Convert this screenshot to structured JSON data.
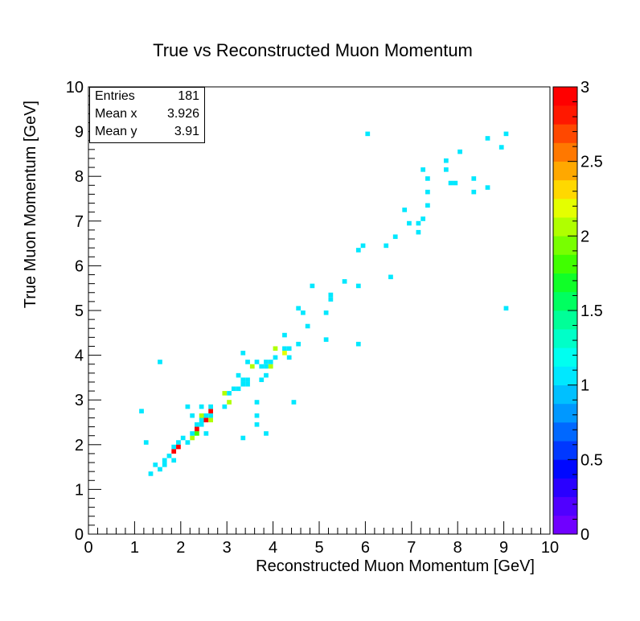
{
  "chart_data": {
    "type": "heatmap",
    "title": "True vs Reconstructed Muon Momentum",
    "xlabel": "Reconstructed Muon Momentum [GeV]",
    "ylabel": "True Muon Momentum [GeV]",
    "xlim": [
      0,
      10
    ],
    "ylim": [
      0,
      10
    ],
    "zlim": [
      0,
      3
    ],
    "bin_width": 0.1,
    "x_ticks": [
      "0",
      "1",
      "2",
      "3",
      "4",
      "5",
      "6",
      "7",
      "8",
      "9",
      "10"
    ],
    "y_ticks": [
      "0",
      "1",
      "2",
      "3",
      "4",
      "5",
      "6",
      "7",
      "8",
      "9",
      "10"
    ],
    "z_ticks": [
      "0",
      "0.5",
      "1",
      "1.5",
      "2",
      "2.5",
      "3"
    ],
    "stats": {
      "entries_label": "Entries",
      "entries": "181",
      "meanx_label": "Mean x",
      "meanx": "3.926",
      "meany_label": "Mean y",
      "meany": "3.91"
    },
    "bins": [
      [
        1.1,
        2.7,
        1
      ],
      [
        1.2,
        2.0,
        1
      ],
      [
        1.3,
        1.3,
        1
      ],
      [
        1.4,
        1.5,
        1
      ],
      [
        1.5,
        1.4,
        1
      ],
      [
        1.5,
        3.8,
        1
      ],
      [
        1.6,
        1.6,
        1
      ],
      [
        1.6,
        1.5,
        1
      ],
      [
        1.7,
        1.7,
        1
      ],
      [
        1.8,
        1.6,
        1
      ],
      [
        1.8,
        1.9,
        1
      ],
      [
        1.8,
        1.8,
        3
      ],
      [
        1.9,
        2.0,
        1
      ],
      [
        1.9,
        1.9,
        3
      ],
      [
        2.0,
        2.1,
        1
      ],
      [
        2.1,
        2.0,
        1
      ],
      [
        2.1,
        2.8,
        1
      ],
      [
        2.2,
        2.1,
        2
      ],
      [
        2.2,
        2.2,
        1
      ],
      [
        2.2,
        2.6,
        1
      ],
      [
        2.3,
        2.2,
        1.8
      ],
      [
        2.3,
        2.4,
        1
      ],
      [
        2.3,
        2.3,
        3
      ],
      [
        2.4,
        2.4,
        1
      ],
      [
        2.4,
        2.8,
        1
      ],
      [
        2.4,
        2.5,
        1
      ],
      [
        2.4,
        2.6,
        2
      ],
      [
        2.5,
        2.2,
        1
      ],
      [
        2.5,
        2.5,
        3
      ],
      [
        2.5,
        2.6,
        1
      ],
      [
        2.6,
        2.5,
        2
      ],
      [
        2.6,
        2.6,
        1
      ],
      [
        2.6,
        2.7,
        3
      ],
      [
        2.6,
        2.8,
        1
      ],
      [
        2.9,
        2.8,
        1
      ],
      [
        2.9,
        3.1,
        2
      ],
      [
        3.0,
        2.9,
        2
      ],
      [
        3.0,
        3.1,
        1
      ],
      [
        3.1,
        3.2,
        1
      ],
      [
        3.2,
        3.2,
        1
      ],
      [
        3.2,
        3.5,
        1
      ],
      [
        3.3,
        3.3,
        1
      ],
      [
        3.3,
        3.4,
        1
      ],
      [
        3.3,
        4.0,
        1
      ],
      [
        3.3,
        2.1,
        1
      ],
      [
        3.4,
        3.3,
        1
      ],
      [
        3.4,
        3.4,
        1
      ],
      [
        3.4,
        3.8,
        1
      ],
      [
        3.5,
        3.7,
        2
      ],
      [
        3.6,
        2.9,
        1
      ],
      [
        3.6,
        2.6,
        1
      ],
      [
        3.6,
        2.4,
        1
      ],
      [
        3.6,
        3.8,
        1
      ],
      [
        3.7,
        3.4,
        1
      ],
      [
        3.7,
        3.7,
        1
      ],
      [
        3.8,
        3.7,
        1
      ],
      [
        3.8,
        3.8,
        1
      ],
      [
        3.8,
        3.5,
        1
      ],
      [
        3.8,
        2.2,
        1
      ],
      [
        3.9,
        3.7,
        2
      ],
      [
        3.9,
        3.8,
        1
      ],
      [
        4.0,
        3.9,
        1
      ],
      [
        4.0,
        4.1,
        2
      ],
      [
        4.2,
        4.0,
        2.2
      ],
      [
        4.2,
        4.1,
        1
      ],
      [
        4.2,
        4.4,
        1
      ],
      [
        4.3,
        3.9,
        1
      ],
      [
        4.3,
        4.1,
        1
      ],
      [
        4.4,
        2.9,
        1
      ],
      [
        4.5,
        4.2,
        1
      ],
      [
        4.5,
        5.0,
        1
      ],
      [
        4.6,
        4.9,
        1
      ],
      [
        4.7,
        4.6,
        1
      ],
      [
        4.8,
        5.5,
        1
      ],
      [
        5.1,
        4.9,
        1
      ],
      [
        5.1,
        4.3,
        1
      ],
      [
        5.2,
        5.3,
        1
      ],
      [
        5.2,
        5.2,
        1
      ],
      [
        5.5,
        5.6,
        1
      ],
      [
        5.8,
        5.5,
        1
      ],
      [
        5.8,
        4.2,
        1
      ],
      [
        5.8,
        6.3,
        1
      ],
      [
        5.9,
        6.4,
        1
      ],
      [
        6.0,
        8.9,
        1
      ],
      [
        6.4,
        6.4,
        1
      ],
      [
        6.5,
        5.7,
        1
      ],
      [
        6.6,
        6.6,
        1
      ],
      [
        6.8,
        7.2,
        1
      ],
      [
        6.9,
        6.9,
        1
      ],
      [
        7.1,
        6.7,
        1
      ],
      [
        7.1,
        6.9,
        1
      ],
      [
        7.2,
        7.0,
        1
      ],
      [
        7.2,
        8.1,
        1
      ],
      [
        7.3,
        7.3,
        1
      ],
      [
        7.3,
        7.6,
        1
      ],
      [
        7.3,
        7.9,
        1
      ],
      [
        7.7,
        8.1,
        1
      ],
      [
        7.7,
        8.3,
        1
      ],
      [
        7.8,
        7.8,
        1
      ],
      [
        7.9,
        7.8,
        1
      ],
      [
        8.0,
        8.5,
        1
      ],
      [
        8.3,
        7.6,
        1
      ],
      [
        8.3,
        7.9,
        1
      ],
      [
        8.6,
        8.8,
        1
      ],
      [
        8.6,
        7.7,
        1
      ],
      [
        8.9,
        8.6,
        1
      ],
      [
        9.0,
        8.9,
        1
      ],
      [
        9.0,
        5.0,
        1
      ]
    ],
    "palette": [
      "#7000ff",
      "#5000ff",
      "#2a00ff",
      "#0008ff",
      "#0038ff",
      "#0068ff",
      "#0098ff",
      "#00c0ff",
      "#00e8ff",
      "#00fff0",
      "#00ffc8",
      "#00ff98",
      "#00ff60",
      "#10ff28",
      "#40ff00",
      "#78ff00",
      "#b0ff00",
      "#e4ff00",
      "#ffd800",
      "#ffa800",
      "#ff7800",
      "#ff4800",
      "#ff1800",
      "#ff0000"
    ]
  }
}
